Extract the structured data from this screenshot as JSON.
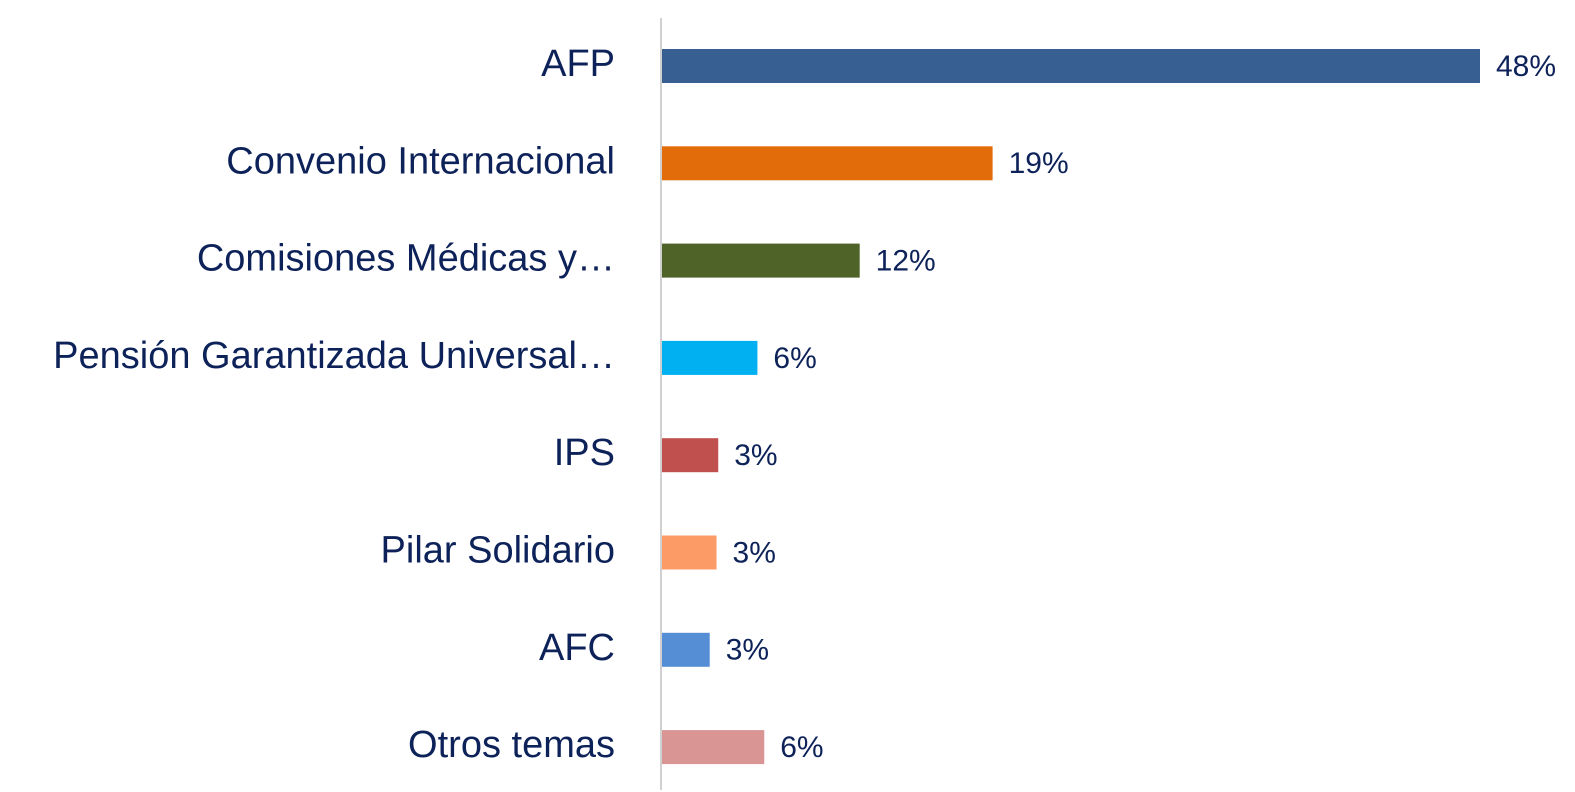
{
  "chart_data": {
    "type": "bar",
    "orientation": "horizontal",
    "categories": [
      "AFP",
      "Convenio Internacional",
      "Comisiones Médicas y…",
      "Pensión Garantizada Universal…",
      "IPS",
      "Pilar Solidario",
      "AFC",
      "Otros temas"
    ],
    "series": [
      {
        "colors": [
          "#375f92",
          "#e36c0a",
          "#4f6228",
          "#00b0f0",
          "#c0504d",
          "#fd9b66",
          "#558ed5",
          "#d99594"
        ],
        "values": [
          48,
          19.4,
          11.6,
          5.6,
          3.3,
          3.2,
          2.8,
          6.0
        ],
        "value_labels": [
          "48%",
          "19%",
          "12%",
          "6%",
          "3%",
          "3%",
          "3%",
          "6%"
        ]
      }
    ]
  }
}
